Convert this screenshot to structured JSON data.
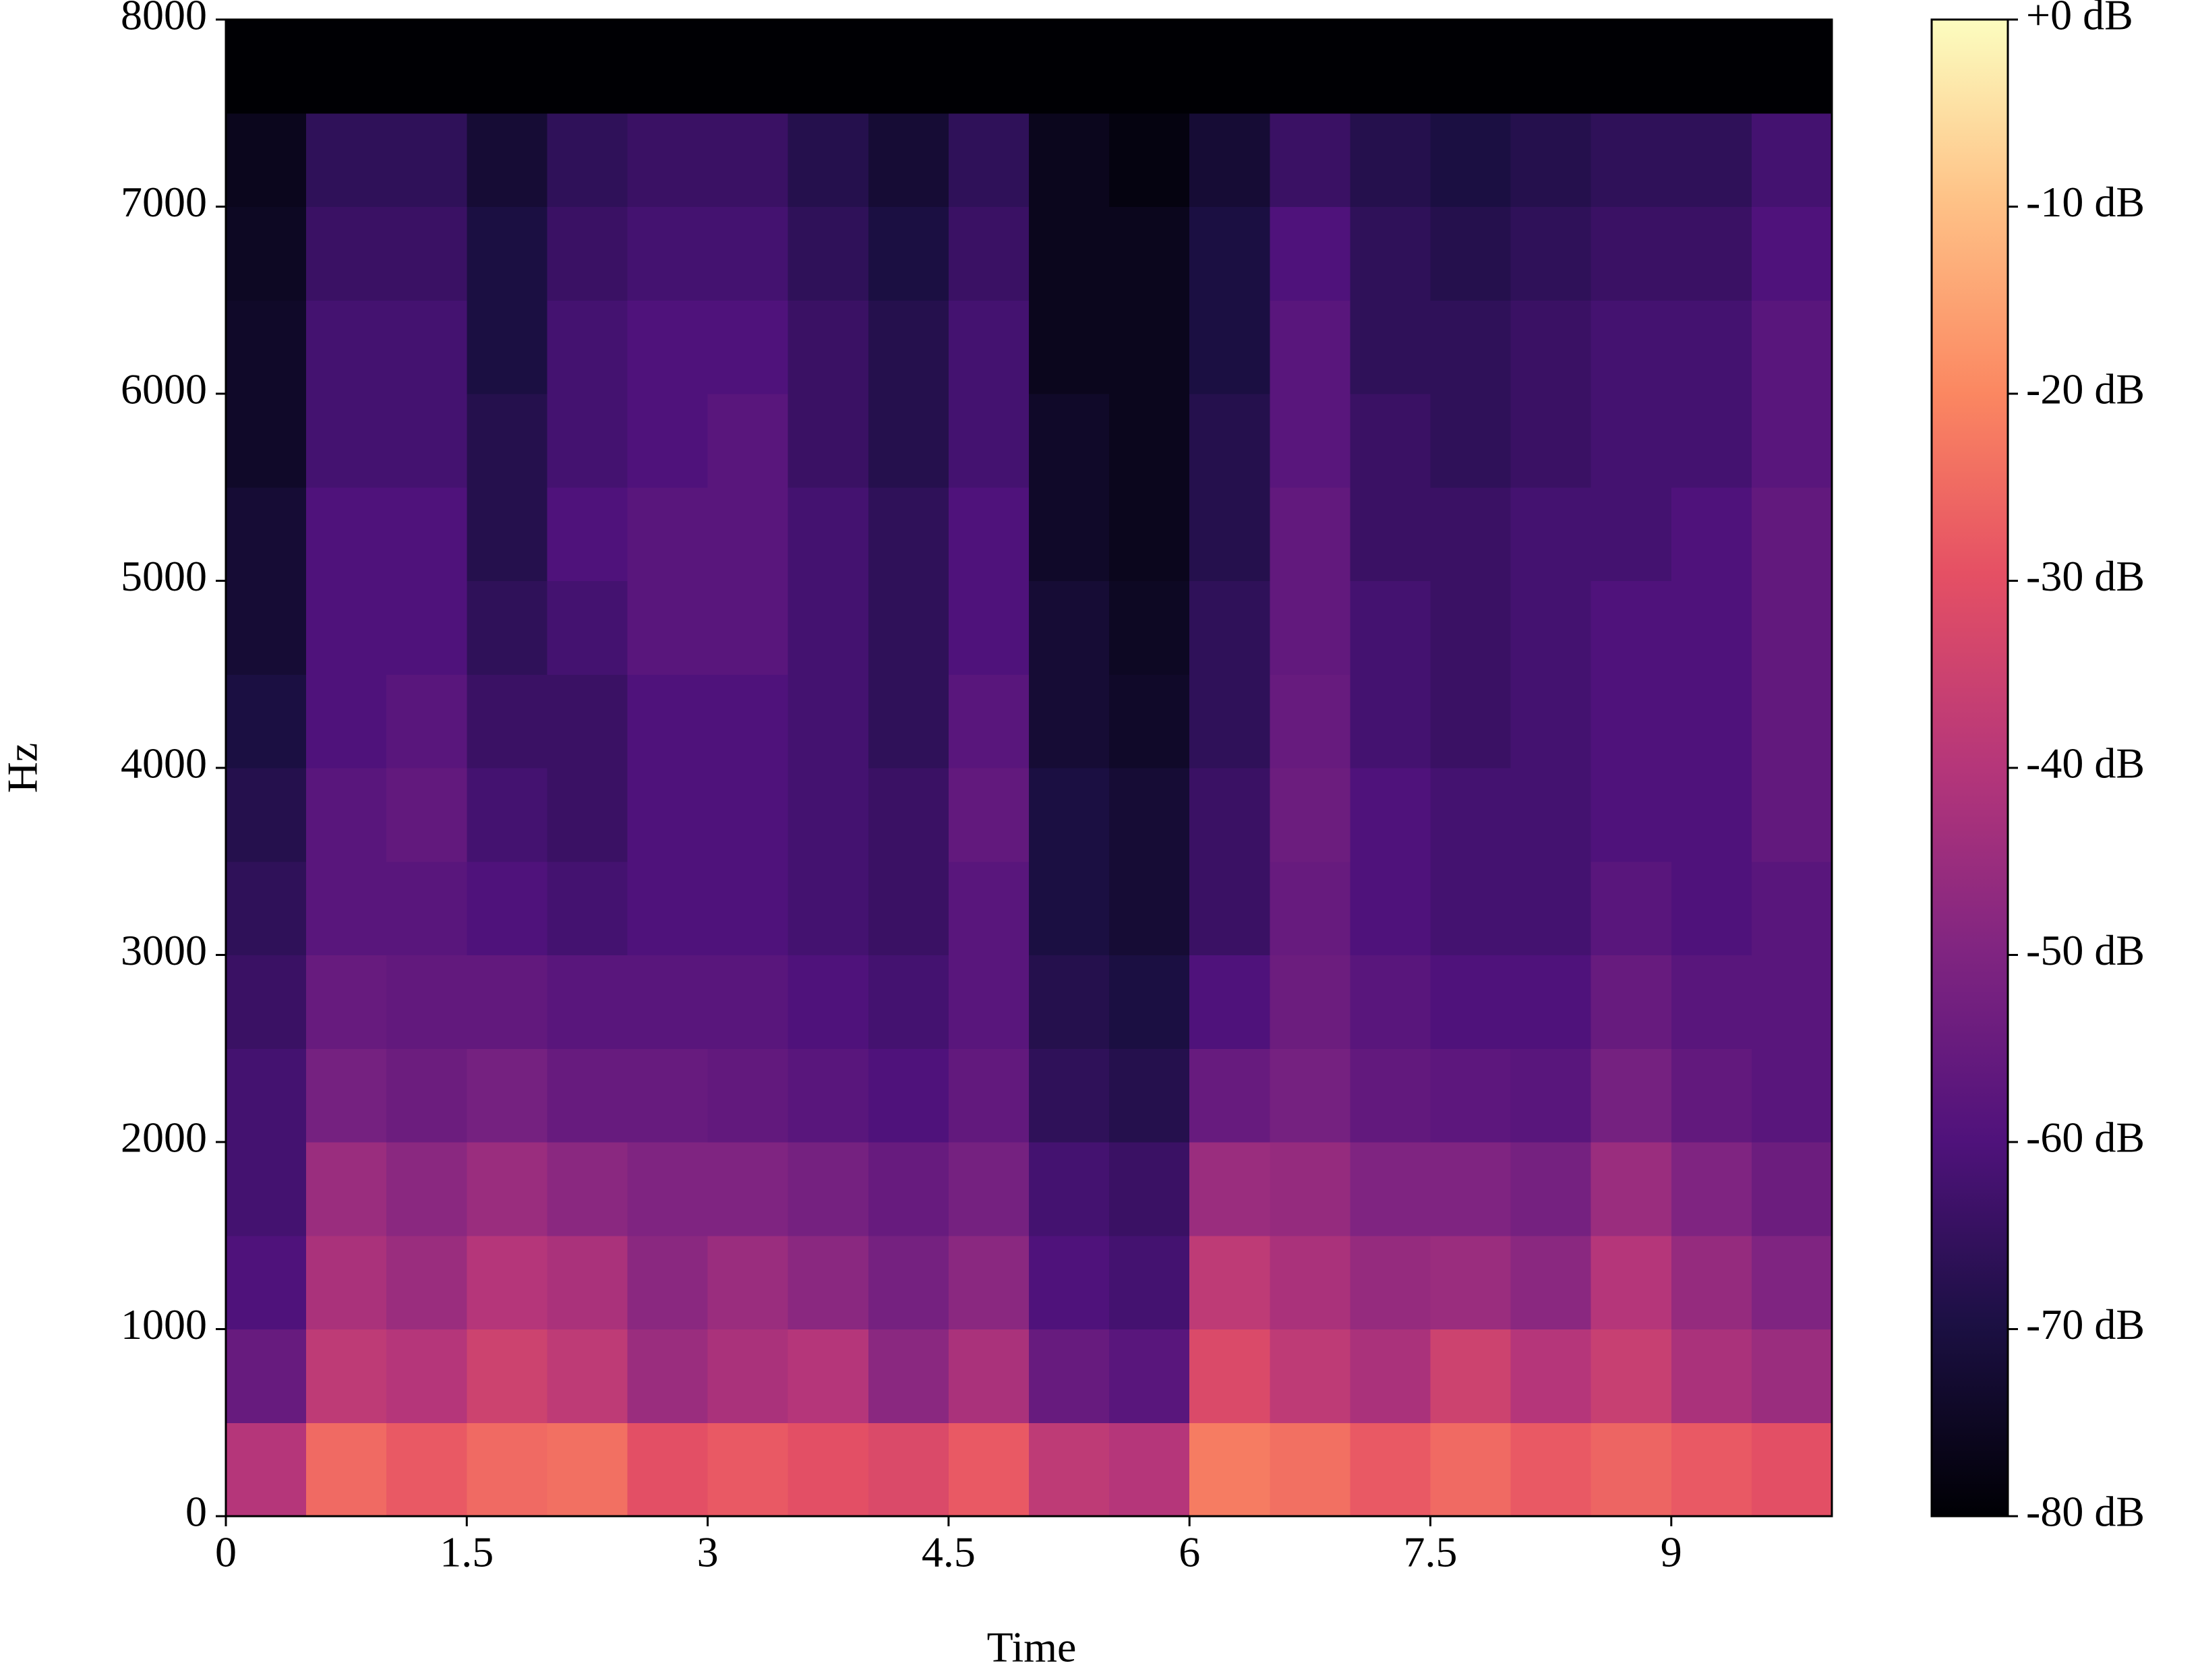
{
  "chart_data": {
    "type": "heatmap",
    "x_label": "Time",
    "y_label": "Hz",
    "xlim": [
      0,
      10
    ],
    "ylim": [
      0,
      8000
    ],
    "xticks": [
      0,
      1.5,
      3,
      4.5,
      6,
      7.5,
      9
    ],
    "yticks": [
      0,
      1000,
      2000,
      3000,
      4000,
      5000,
      6000,
      7000,
      8000
    ],
    "x_bins": [
      0,
      0.5,
      1,
      1.5,
      2,
      2.5,
      3,
      3.5,
      4,
      4.5,
      5,
      5.5,
      6,
      6.5,
      7,
      7.5,
      8,
      8.5,
      9,
      9.5,
      10
    ],
    "y_bins": [
      0,
      500,
      1000,
      1500,
      2000,
      2500,
      3000,
      3500,
      4000,
      4500,
      5000,
      5500,
      6000,
      6500,
      7000,
      7500,
      8000
    ],
    "colormap": "magma",
    "clim": [
      -80,
      0
    ],
    "cticks": [
      {
        "value": 0,
        "label": "+0 dB"
      },
      {
        "value": -10,
        "label": "-10 dB"
      },
      {
        "value": -20,
        "label": "-20 dB"
      },
      {
        "value": -30,
        "label": "-30 dB"
      },
      {
        "value": -40,
        "label": "-40 dB"
      },
      {
        "value": -50,
        "label": "-50 dB"
      },
      {
        "value": -60,
        "label": "-60 dB"
      },
      {
        "value": -70,
        "label": "-70 dB"
      },
      {
        "value": -80,
        "label": "-80 dB"
      }
    ],
    "z": [
      [
        -40,
        -25,
        -28,
        -25,
        -24,
        -30,
        -28,
        -30,
        -32,
        -28,
        -38,
        -40,
        -22,
        -24,
        -28,
        -25,
        -28,
        -26,
        -28,
        -30
      ],
      [
        -55,
        -38,
        -40,
        -35,
        -38,
        -45,
        -42,
        -40,
        -48,
        -42,
        -55,
        -58,
        -32,
        -38,
        -42,
        -35,
        -40,
        -36,
        -42,
        -45
      ],
      [
        -60,
        -42,
        -45,
        -40,
        -42,
        -48,
        -45,
        -48,
        -52,
        -48,
        -60,
        -62,
        -38,
        -42,
        -46,
        -45,
        -48,
        -40,
        -46,
        -50
      ],
      [
        -62,
        -45,
        -48,
        -45,
        -48,
        -50,
        -50,
        -52,
        -55,
        -52,
        -62,
        -64,
        -45,
        -46,
        -50,
        -50,
        -52,
        -45,
        -50,
        -54
      ],
      [
        -62,
        -52,
        -54,
        -52,
        -55,
        -55,
        -56,
        -58,
        -60,
        -56,
        -66,
        -68,
        -55,
        -52,
        -56,
        -57,
        -58,
        -52,
        -56,
        -58
      ],
      [
        -64,
        -55,
        -56,
        -56,
        -58,
        -58,
        -58,
        -60,
        -62,
        -58,
        -68,
        -70,
        -60,
        -54,
        -58,
        -60,
        -60,
        -55,
        -58,
        -58
      ],
      [
        -66,
        -58,
        -58,
        -60,
        -62,
        -60,
        -60,
        -62,
        -64,
        -58,
        -70,
        -72,
        -64,
        -55,
        -60,
        -62,
        -62,
        -58,
        -60,
        -58
      ],
      [
        -68,
        -58,
        -56,
        -62,
        -64,
        -60,
        -60,
        -62,
        -64,
        -56,
        -70,
        -72,
        -64,
        -54,
        -60,
        -62,
        -62,
        -60,
        -60,
        -56
      ],
      [
        -70,
        -60,
        -58,
        -64,
        -64,
        -60,
        -60,
        -62,
        -66,
        -58,
        -72,
        -74,
        -66,
        -55,
        -62,
        -64,
        -62,
        -60,
        -60,
        -56
      ],
      [
        -72,
        -60,
        -60,
        -66,
        -62,
        -58,
        -58,
        -62,
        -66,
        -60,
        -72,
        -75,
        -66,
        -56,
        -62,
        -64,
        -62,
        -60,
        -60,
        -56
      ],
      [
        -72,
        -60,
        -60,
        -68,
        -60,
        -58,
        -58,
        -62,
        -66,
        -60,
        -74,
        -76,
        -68,
        -56,
        -64,
        -64,
        -62,
        -62,
        -60,
        -56
      ],
      [
        -74,
        -62,
        -62,
        -68,
        -62,
        -60,
        -58,
        -64,
        -68,
        -62,
        -74,
        -76,
        -68,
        -58,
        -64,
        -66,
        -64,
        -62,
        -62,
        -58
      ],
      [
        -74,
        -62,
        -62,
        -70,
        -62,
        -60,
        -60,
        -64,
        -68,
        -62,
        -76,
        -76,
        -70,
        -58,
        -66,
        -66,
        -64,
        -62,
        -62,
        -58
      ],
      [
        -75,
        -64,
        -64,
        -70,
        -64,
        -62,
        -62,
        -66,
        -70,
        -64,
        -76,
        -76,
        -70,
        -60,
        -66,
        -68,
        -66,
        -64,
        -64,
        -60
      ],
      [
        -76,
        -66,
        -66,
        -72,
        -66,
        -64,
        -64,
        -68,
        -72,
        -66,
        -76,
        -78,
        -72,
        -64,
        -68,
        -70,
        -68,
        -66,
        -66,
        -62
      ],
      [
        -80,
        -80,
        -80,
        -80,
        -80,
        -80,
        -80,
        -80,
        -80,
        -80,
        -80,
        -80,
        -80,
        -80,
        -80,
        -80,
        -80,
        -80,
        -80,
        -80
      ]
    ]
  }
}
